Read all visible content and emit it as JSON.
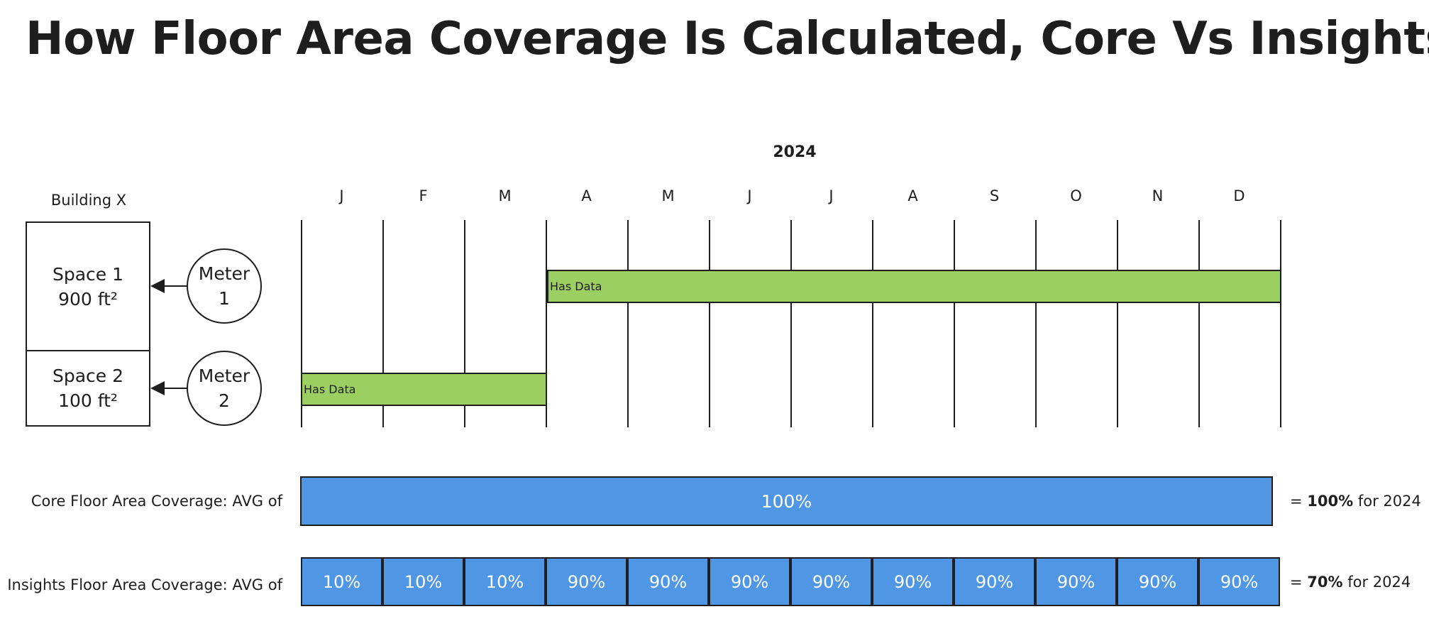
{
  "title": "How Floor Area Coverage Is Calculated, Core Vs Insights",
  "year": "2024",
  "building": {
    "label": "Building X",
    "spaces": [
      {
        "name": "Space 1",
        "area": "900 ft²"
      },
      {
        "name": "Space 2",
        "area": "100 ft²"
      }
    ],
    "meters": [
      {
        "line1": "Meter",
        "line2": "1"
      },
      {
        "line1": "Meter",
        "line2": "2"
      }
    ]
  },
  "months": [
    "J",
    "F",
    "M",
    "A",
    "M",
    "J",
    "J",
    "A",
    "S",
    "O",
    "N",
    "D"
  ],
  "data_bars": [
    {
      "label": "Has Data",
      "meter": "Meter 1",
      "start_month_index": 3,
      "end_month_index": 11
    },
    {
      "label": "Has Data",
      "meter": "Meter 2",
      "start_month_index": 0,
      "end_month_index": 2
    }
  ],
  "core": {
    "label": "Core Floor Area Coverage: AVG of",
    "bar_value": "100%",
    "result_prefix": "= ",
    "result_value": "100%",
    "result_suffix": " for 2024"
  },
  "insights": {
    "label": "Insights Floor Area Coverage: AVG of",
    "monthly_values": [
      "10%",
      "10%",
      "10%",
      "90%",
      "90%",
      "90%",
      "90%",
      "90%",
      "90%",
      "90%",
      "90%",
      "90%"
    ],
    "result_prefix": "= ",
    "result_value": "70%",
    "result_suffix": " for 2024"
  },
  "colors": {
    "has_data": "#9ccf61",
    "coverage": "#4f97e5",
    "stroke": "#1e1e1e"
  }
}
